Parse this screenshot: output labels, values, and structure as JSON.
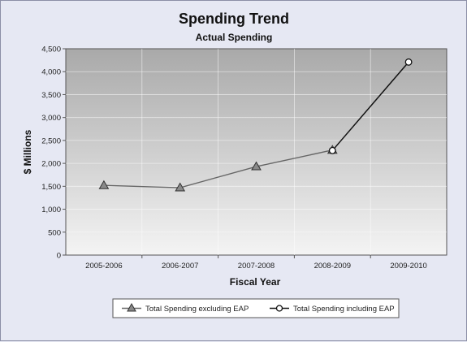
{
  "chart_data": {
    "type": "line",
    "title": "Spending Trend",
    "subtitle": "Actual Spending",
    "xlabel": "Fiscal Year",
    "ylabel": "$ Millions",
    "categories": [
      "2005-2006",
      "2006-2007",
      "2007-2008",
      "2008-2009",
      "2009-2010"
    ],
    "ylim": [
      0,
      4500
    ],
    "yticks": [
      0,
      500,
      1000,
      1500,
      2000,
      2500,
      3000,
      3500,
      4000,
      4500
    ],
    "ytick_labels": [
      "0",
      "500",
      "1,000",
      "1,500",
      "2,000",
      "2,500",
      "3,000",
      "3,500",
      "4,000",
      "4,500"
    ],
    "grid": true,
    "legend_position": "bottom",
    "series": [
      {
        "name": "Total Spending excluding EAP",
        "marker": "triangle",
        "color": "#666666",
        "values": [
          1520,
          1470,
          1930,
          2290,
          null
        ]
      },
      {
        "name": "Total Spending including EAP",
        "marker": "circle",
        "color": "#111111",
        "values": [
          null,
          null,
          null,
          2280,
          4210
        ]
      }
    ]
  }
}
